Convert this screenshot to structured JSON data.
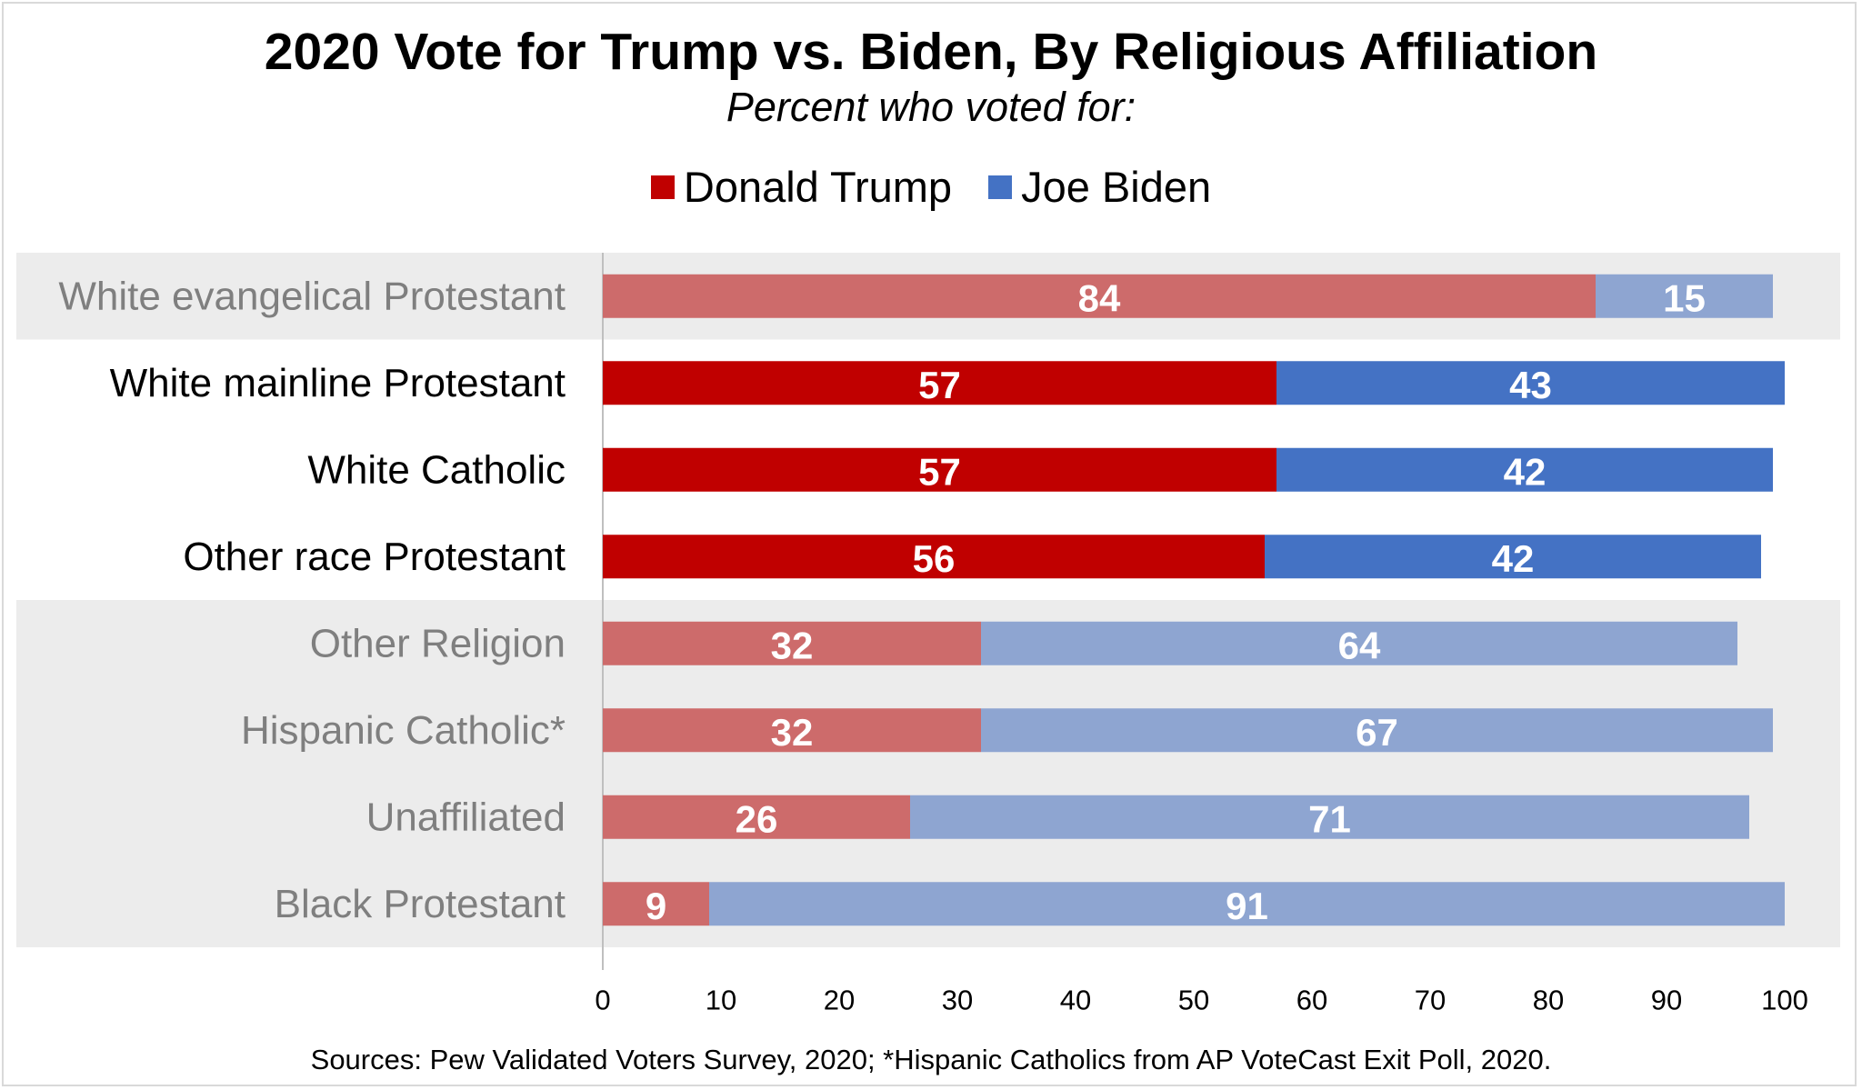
{
  "chart_data": {
    "type": "bar",
    "orientation": "horizontal",
    "stacked": true,
    "title": "2020 Vote for Trump vs. Biden, By Religious Affiliation",
    "subtitle": "Percent who voted for:",
    "categories": [
      "White evangelical Protestant",
      "White mainline Protestant",
      "White Catholic",
      "Other race Protestant",
      "Other Religion",
      "Hispanic Catholic*",
      "Unaffiliated",
      "Black Protestant"
    ],
    "emphasized": [
      false,
      true,
      true,
      true,
      false,
      false,
      false,
      false
    ],
    "series": [
      {
        "name": "Donald Trump",
        "values": [
          84,
          57,
          57,
          56,
          32,
          32,
          26,
          9
        ],
        "color": "#c00000",
        "muted_color": "#cd6b6b"
      },
      {
        "name": "Joe Biden",
        "values": [
          15,
          43,
          42,
          42,
          64,
          67,
          71,
          91
        ],
        "color": "#4472c4",
        "muted_color": "#8ea5d1"
      }
    ],
    "xlim": [
      0,
      100
    ],
    "xticks": [
      "0",
      "10",
      "20",
      "30",
      "40",
      "50",
      "60",
      "70",
      "80",
      "90",
      "100"
    ],
    "legend_position": "top-center",
    "grid": false,
    "source": "Sources: Pew Validated Voters Survey, 2020; *Hispanic Catholics from AP VoteCast Exit Poll, 2020."
  },
  "colors": {
    "band_background": "#ececec",
    "axis_line": "#bfbfbf",
    "label_emphasized": "#000000",
    "label_muted": "#7f7f7f",
    "bar_value_text": "#ffffff"
  }
}
